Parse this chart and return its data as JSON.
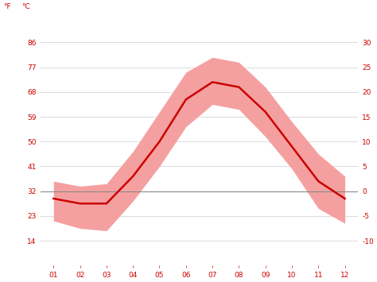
{
  "months": [
    1,
    2,
    3,
    4,
    5,
    6,
    7,
    8,
    9,
    10,
    11,
    12
  ],
  "month_labels": [
    "01",
    "02",
    "03",
    "04",
    "05",
    "06",
    "07",
    "08",
    "09",
    "10",
    "11",
    "12"
  ],
  "mean_f": [
    29.3,
    27.5,
    27.5,
    37.4,
    50.0,
    65.3,
    71.6,
    69.8,
    60.8,
    48.2,
    35.6,
    29.3
  ],
  "upper_f": [
    35.6,
    33.8,
    34.7,
    46.4,
    60.8,
    75.2,
    80.6,
    78.8,
    69.8,
    57.2,
    45.5,
    37.4
  ],
  "lower_f": [
    21.2,
    18.5,
    17.6,
    28.4,
    41.0,
    55.4,
    63.5,
    61.7,
    51.8,
    40.1,
    25.7,
    20.3
  ],
  "line_color": "#cc0000",
  "fill_color": "#f5a0a0",
  "zero_line_color": "#888888",
  "grid_color": "#cccccc",
  "yticks_f": [
    14,
    23,
    32,
    41,
    50,
    59,
    68,
    77,
    86
  ],
  "yticks_c": [
    -10,
    -5,
    0,
    5,
    10,
    15,
    20,
    25,
    30
  ],
  "ylabel_f": "°F",
  "ylabel_c": "°C",
  "background_color": "#ffffff",
  "xlim": [
    0.5,
    12.5
  ],
  "ylim_f": [
    5,
    95
  ]
}
